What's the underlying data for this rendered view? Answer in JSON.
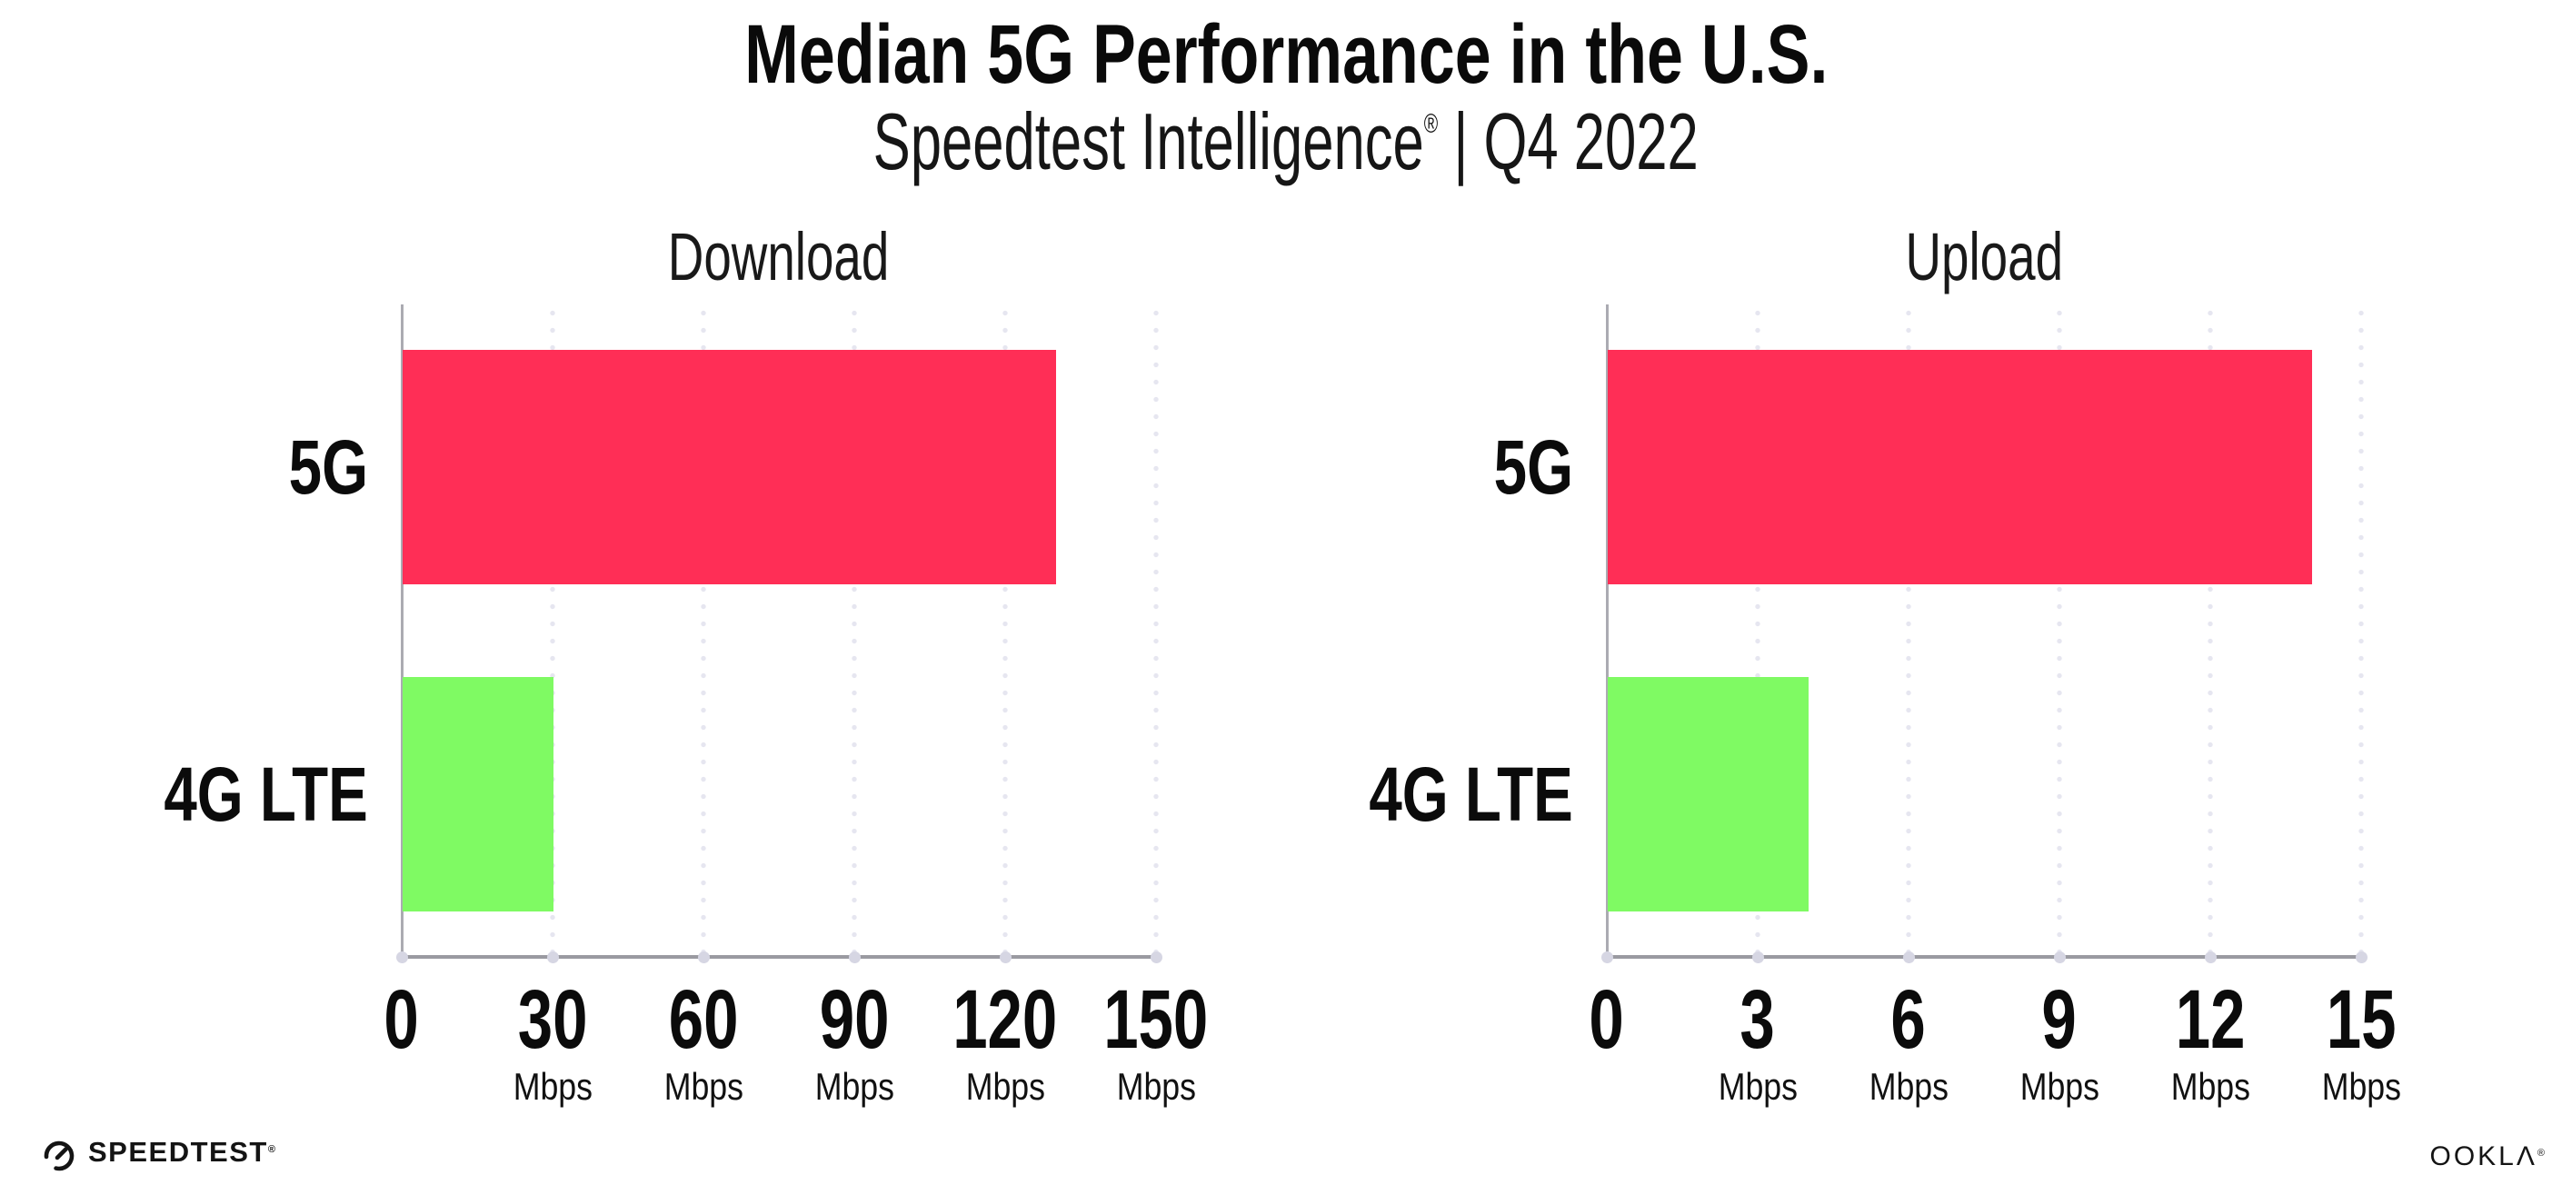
{
  "page": {
    "title": "Median 5G Performance in the U.S.",
    "subtitle_brand": "Speedtest Intelligence",
    "subtitle_mark": "®",
    "subtitle_rest": " | Q4 2022"
  },
  "footer": {
    "speedtest_label": "SPEEDTEST",
    "speedtest_mark": "®",
    "ookla_label": "OOKLΛ",
    "ookla_mark": "®"
  },
  "colors": {
    "bar_5g_pink": "#FF2E56",
    "bar_4g_green": "#7FFA63",
    "axis_gray": "#9A9AA1",
    "gridline_gray": "#E6E6F0"
  },
  "chart_data": [
    {
      "type": "bar",
      "orientation": "horizontal",
      "title": "Download",
      "categories": [
        "5G",
        "4G LTE"
      ],
      "values": [
        130,
        30
      ],
      "colors": [
        "#FF2E56",
        "#7FFA63"
      ],
      "unit": "Mbps",
      "xlim": [
        0,
        150
      ],
      "xticks": [
        0,
        30,
        60,
        90,
        120,
        150
      ],
      "grid": "dotted-vertical",
      "legend": "none"
    },
    {
      "type": "bar",
      "orientation": "horizontal",
      "title": "Upload",
      "categories": [
        "5G",
        "4G LTE"
      ],
      "values": [
        14,
        4
      ],
      "colors": [
        "#FF2E56",
        "#7FFA63"
      ],
      "unit": "Mbps",
      "xlim": [
        0,
        15
      ],
      "xticks": [
        0,
        3,
        6,
        9,
        12,
        15
      ],
      "grid": "dotted-vertical",
      "legend": "none"
    }
  ]
}
